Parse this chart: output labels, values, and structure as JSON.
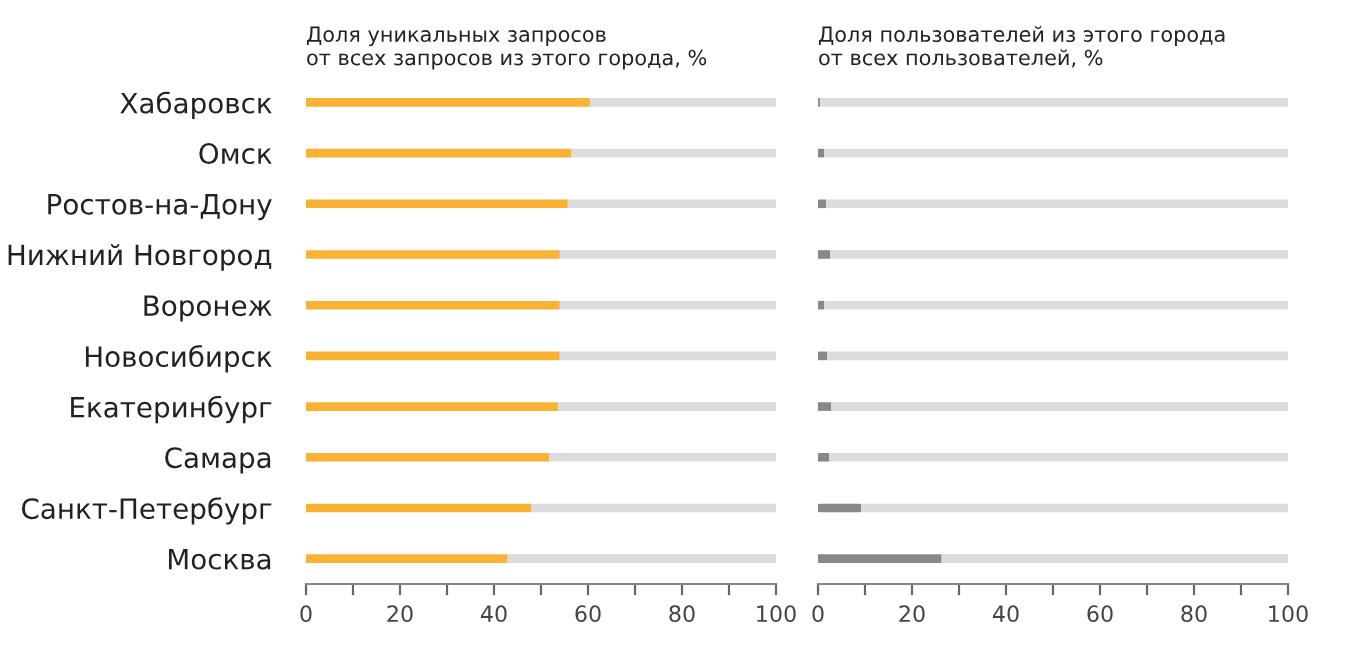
{
  "chart_data": [
    {
      "type": "bar",
      "orientation": "horizontal",
      "stacked": true,
      "title": "Доля уникальных запросов\nот всех запросов из этого города, %",
      "categories": [
        "Хабаровск",
        "Омск",
        "Ростов-на-Дону",
        "Нижний Новгород",
        "Воронеж",
        "Новосибирск",
        "Екатеринбург",
        "Самара",
        "Санкт-Петербург",
        "Москва"
      ],
      "series": [
        {
          "color": "#f9b233",
          "values": [
            60.4,
            56.5,
            55.7,
            54,
            54,
            54,
            53.6,
            51.8,
            48,
            42.9
          ]
        },
        {
          "color": "#dcdcdc",
          "values": [
            39.6,
            43.5,
            44.3,
            46,
            46,
            46,
            46.4,
            48.2,
            52,
            57.1
          ]
        }
      ],
      "xlim": [
        0,
        100
      ],
      "xticks": [
        0,
        {
          "value": 10,
          "label": null
        },
        20,
        {
          "value": 30,
          "label": null
        },
        40,
        {
          "value": 50,
          "label": null
        },
        60,
        {
          "value": 70,
          "label": null
        },
        80,
        {
          "value": 90,
          "label": null
        },
        100
      ],
      "grid": false
    },
    {
      "type": "bar",
      "orientation": "horizontal",
      "stacked": true,
      "title": "Доля пользователей из этого города\nот всех пользователей, %",
      "categories": [
        null,
        null,
        null,
        null,
        null,
        null,
        null,
        null,
        null,
        null
      ],
      "series": [
        {
          "color": "#888888",
          "values": [
            0.4,
            1.3,
            1.7,
            2.6,
            1.3,
            2,
            2.8,
            2.4,
            9.2,
            26.3
          ]
        },
        {
          "color": "#dcdcdc",
          "values": [
            99.6,
            98.7,
            98.3,
            97.4,
            98.7,
            98,
            97.2,
            97.6,
            90.8,
            73.7
          ]
        }
      ],
      "xlim": [
        0,
        100
      ],
      "xticks": [
        0,
        {
          "value": 10,
          "label": null
        },
        20,
        {
          "value": 30,
          "label": null
        },
        40,
        {
          "value": 50,
          "label": null
        },
        60,
        {
          "value": 70,
          "label": null
        },
        80,
        {
          "value": 90,
          "label": null
        },
        100
      ],
      "grid": false
    }
  ]
}
